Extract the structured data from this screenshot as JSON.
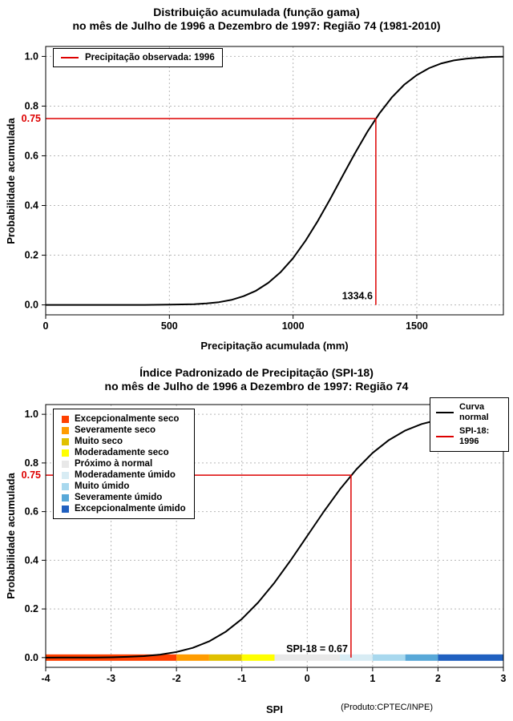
{
  "chart_data": [
    {
      "type": "line",
      "title": "Distribuição acumulada (função gama)",
      "subtitle": "no mês de Julho de 1996 a Dezembro de 1997: Região 74 (1981-2010)",
      "xlabel": "Precipitação acumulada (mm)",
      "ylabel": "Probabilidade acumulada",
      "xlim": [
        0,
        1850
      ],
      "ylim": [
        0,
        1
      ],
      "xticks": [
        0,
        500,
        1000,
        1500
      ],
      "xtick_labels": [
        "0",
        "500",
        "1000",
        "1500"
      ],
      "yticks": [
        0,
        0.2,
        0.4,
        0.6,
        0.8,
        1
      ],
      "ytick_labels": [
        "0.0",
        "0.2",
        "0.4",
        "0.6",
        "0.8",
        "1.0"
      ],
      "grid": true,
      "legend": {
        "position": "top-left",
        "entries": [
          {
            "label": "Precipitação observada: 1996",
            "color": "#dd0000",
            "type": "line"
          }
        ]
      },
      "series": [
        {
          "name": "gamma-cdf-curve",
          "color": "#000000",
          "x": [
            0,
            100,
            200,
            300,
            400,
            500,
            550,
            600,
            650,
            700,
            750,
            800,
            850,
            900,
            950,
            1000,
            1050,
            1100,
            1150,
            1200,
            1250,
            1300,
            1350,
            1400,
            1450,
            1500,
            1550,
            1600,
            1650,
            1700,
            1750,
            1800,
            1850
          ],
          "y": [
            0,
            0,
            0,
            0,
            0,
            0.001,
            0.002,
            0.003,
            0.006,
            0.011,
            0.02,
            0.035,
            0.057,
            0.089,
            0.132,
            0.188,
            0.258,
            0.338,
            0.426,
            0.519,
            0.61,
            0.696,
            0.772,
            0.836,
            0.887,
            0.925,
            0.953,
            0.972,
            0.984,
            0.991,
            0.995,
            0.998,
            0.999
          ]
        }
      ],
      "annotation": {
        "probability": 0.75,
        "prob_label": "0.75",
        "value": 1334.6,
        "value_label": "1334.6",
        "color": "#dd0000"
      }
    },
    {
      "type": "line",
      "title": "Índice Padronizado de Precipitação (SPI-18)",
      "subtitle": "no mês de Julho de 1996 a Dezembro de 1997: Região 74",
      "xlabel": "SPI",
      "ylabel": "Probabilidade acumulada",
      "caption": "(Produto:CPTEC/INPE)",
      "xlim": [
        -4,
        3
      ],
      "ylim": [
        0,
        1
      ],
      "xticks": [
        -4,
        -3,
        -2,
        -1,
        0,
        1,
        2,
        3
      ],
      "xtick_labels": [
        "-4",
        "-3",
        "-2",
        "-1",
        "0",
        "1",
        "2",
        "3"
      ],
      "yticks": [
        0,
        0.2,
        0.4,
        0.6,
        0.8,
        1
      ],
      "ytick_labels": [
        "0.0",
        "0.2",
        "0.4",
        "0.6",
        "0.8",
        "1.0"
      ],
      "grid": true,
      "category_legend": [
        {
          "label": "Excepcionalmente seco",
          "color": "#ff4000"
        },
        {
          "label": "Severamente seco",
          "color": "#ff9c00"
        },
        {
          "label": "Muito seco",
          "color": "#e0c000"
        },
        {
          "label": "Moderadamente seco",
          "color": "#ffff00"
        },
        {
          "label": "Próximo à normal",
          "color": "#e8e8e8"
        },
        {
          "label": "Moderadamente úmido",
          "color": "#d8ecf4"
        },
        {
          "label": "Muito úmido",
          "color": "#a8d8ee"
        },
        {
          "label": "Severamente úmido",
          "color": "#58a8d8"
        },
        {
          "label": "Excepcionalmente úmido",
          "color": "#2060c0"
        }
      ],
      "line_legend": [
        {
          "label": "Curva normal",
          "color": "#000000"
        },
        {
          "label": "SPI-18: 1996",
          "color": "#dd0000"
        }
      ],
      "spi_bar": [
        {
          "from": -4,
          "to": -2,
          "color": "#ff4000"
        },
        {
          "from": -2,
          "to": -1.5,
          "color": "#ff9c00"
        },
        {
          "from": -1.5,
          "to": -1,
          "color": "#e0c000"
        },
        {
          "from": -1,
          "to": -0.5,
          "color": "#ffff00"
        },
        {
          "from": -0.5,
          "to": 0.5,
          "color": "#e8e8e8"
        },
        {
          "from": 0.5,
          "to": 1,
          "color": "#d8ecf4"
        },
        {
          "from": 1,
          "to": 1.5,
          "color": "#a8d8ee"
        },
        {
          "from": 1.5,
          "to": 2,
          "color": "#58a8d8"
        },
        {
          "from": 2,
          "to": 3,
          "color": "#2060c0"
        }
      ],
      "series": [
        {
          "name": "normal-cdf-curve",
          "color": "#000000",
          "x": [
            -4,
            -3.75,
            -3.5,
            -3.25,
            -3,
            -2.75,
            -2.5,
            -2.25,
            -2,
            -1.75,
            -1.5,
            -1.25,
            -1,
            -0.75,
            -0.5,
            -0.25,
            0,
            0.25,
            0.5,
            0.75,
            1,
            1.25,
            1.5,
            1.75,
            2,
            2.25,
            2.5,
            2.75,
            3
          ],
          "y": [
            0,
            0.0001,
            0.0002,
            0.0006,
            0.0013,
            0.003,
            0.0062,
            0.0122,
            0.0228,
            0.0401,
            0.0668,
            0.1056,
            0.1587,
            0.2266,
            0.3085,
            0.4013,
            0.5,
            0.5987,
            0.6915,
            0.7734,
            0.8413,
            0.8944,
            0.9332,
            0.9599,
            0.9772,
            0.9878,
            0.9938,
            0.997,
            0.9987
          ]
        }
      ],
      "annotation": {
        "probability": 0.75,
        "prob_label": "0.75",
        "value": 0.67,
        "value_label": "SPI-18 = 0.67",
        "color": "#dd0000"
      }
    }
  ]
}
